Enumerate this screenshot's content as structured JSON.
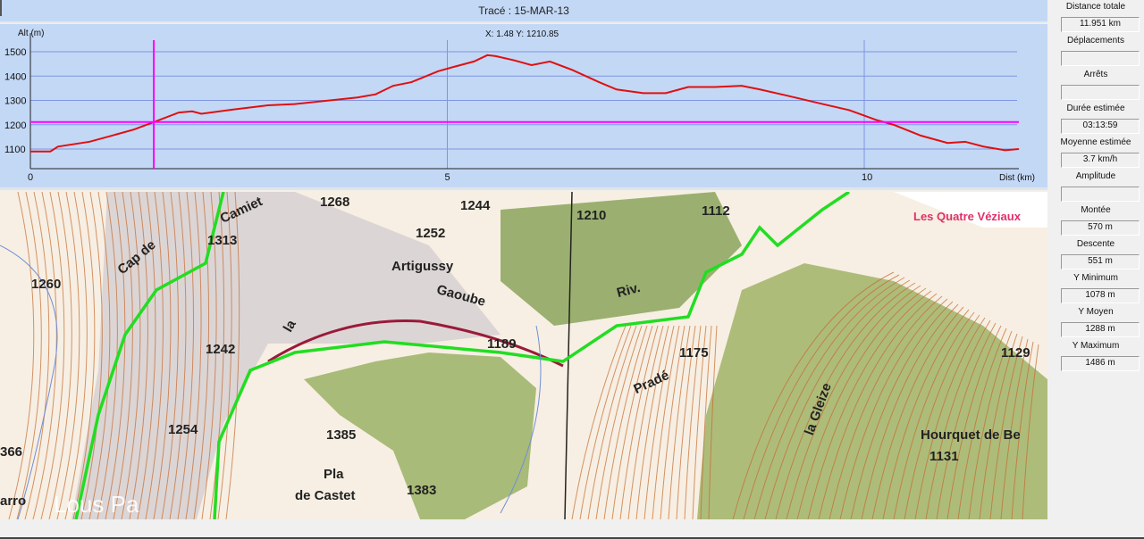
{
  "title": "Tracé : 15-MAR-13",
  "cursor_readout": "X: 1.48 Y: 1210.85",
  "chart_data": {
    "type": "line",
    "ylabel": "Alt (m)",
    "xlabel": "Dist (km)",
    "xlim": [
      0,
      11.95
    ],
    "ylim": [
      1050,
      1545
    ],
    "x_ticks": [
      "0",
      "5",
      "10"
    ],
    "y_ticks": [
      "1500",
      "1400",
      "1300",
      "1200",
      "1100"
    ],
    "grid": true,
    "cursor": {
      "x": 1.48,
      "y": 1210.85
    },
    "colors": {
      "line": "#e01010",
      "cursor": "#ff00ff",
      "grid": "#7f95e0",
      "background": "#c3d8f5"
    },
    "x": [
      0,
      0.24,
      0.33,
      0.71,
      1.03,
      1.24,
      1.48,
      1.78,
      1.94,
      2.05,
      2.42,
      2.85,
      3.17,
      3.92,
      4.14,
      4.35,
      4.57,
      4.89,
      5.1,
      5.32,
      5.48,
      5.58,
      5.8,
      6.01,
      6.23,
      6.5,
      6.82,
      7.03,
      7.35,
      7.62,
      7.89,
      8.21,
      8.53,
      8.75,
      9.07,
      9.5,
      9.82,
      10.14,
      10.35,
      10.68,
      11.0,
      11.21,
      11.43,
      11.69,
      11.85
    ],
    "y": [
      1090,
      1090,
      1110,
      1130,
      1160,
      1180,
      1211,
      1250,
      1255,
      1245,
      1262,
      1280,
      1285,
      1312,
      1325,
      1360,
      1375,
      1420,
      1440,
      1460,
      1486,
      1482,
      1465,
      1445,
      1460,
      1425,
      1375,
      1345,
      1330,
      1330,
      1355,
      1355,
      1360,
      1345,
      1320,
      1285,
      1260,
      1220,
      1200,
      1155,
      1125,
      1130,
      1110,
      1095,
      1100
    ]
  },
  "stats": [
    {
      "label": "Distance totale",
      "value": "11.951 km"
    },
    {
      "label": "Déplacements",
      "value": ""
    },
    {
      "label": "Arrêts",
      "value": ""
    },
    {
      "label": "Durée estimée",
      "value": "03:13:59"
    },
    {
      "label": "Moyenne estimée",
      "value": "3.7 km/h"
    },
    {
      "label": "Amplitude",
      "value": ""
    },
    {
      "label": "Montée",
      "value": "570 m"
    },
    {
      "label": "Descente",
      "value": "551 m"
    },
    {
      "label": "Y Minimum",
      "value": "1078 m"
    },
    {
      "label": "Y Moyen",
      "value": "1288 m"
    },
    {
      "label": "Y Maximum",
      "value": "1486 m"
    }
  ],
  "map": {
    "labels": [
      "Camiet",
      "1313",
      "1268",
      "1244",
      "1252",
      "1210",
      "1112",
      "Les Quatre Véziaux",
      "1260",
      "Cap de",
      "Artigussy",
      "Gaoube",
      "Riv.",
      "la",
      "1242",
      "1189",
      "1175",
      "1129",
      "1254",
      "1385",
      "366",
      "Pla",
      "de Castet",
      "1383",
      "Pradé",
      "la Gleize",
      "Hourquet de Be",
      "1131",
      "arro"
    ],
    "watermark": "Lous Pa",
    "track_color": "#22dd22"
  }
}
